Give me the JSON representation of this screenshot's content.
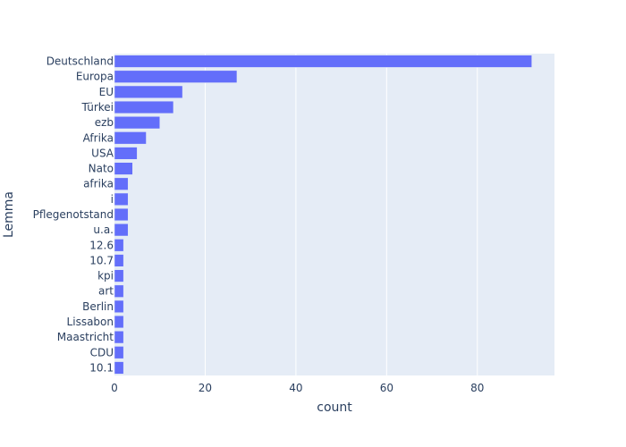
{
  "chart_data": {
    "type": "bar",
    "orientation": "horizontal",
    "xlabel": "count",
    "ylabel": "Lemma",
    "xlim": [
      0,
      97
    ],
    "x_ticks": [
      0,
      20,
      40,
      60,
      80
    ],
    "grid": true,
    "colors": {
      "bar": "#636efa",
      "plot_bg": "#e5ecf6",
      "grid": "#ffffff",
      "text": "#2a3f5f"
    },
    "categories": [
      "Deutschland",
      "Europa",
      "EU",
      "Türkei",
      "ezb",
      "Afrika",
      "USA",
      "Nato",
      "afrika",
      "i",
      "Pflegenotstand",
      "u.a.",
      "12.6",
      "10.7",
      "kpi",
      "art",
      "Berlin",
      "Lissabon",
      "Maastricht",
      "CDU",
      "10.1"
    ],
    "values": [
      92,
      27,
      15,
      13,
      10,
      7,
      5,
      4,
      3,
      3,
      3,
      3,
      2,
      2,
      2,
      2,
      2,
      2,
      2,
      2,
      2
    ]
  }
}
